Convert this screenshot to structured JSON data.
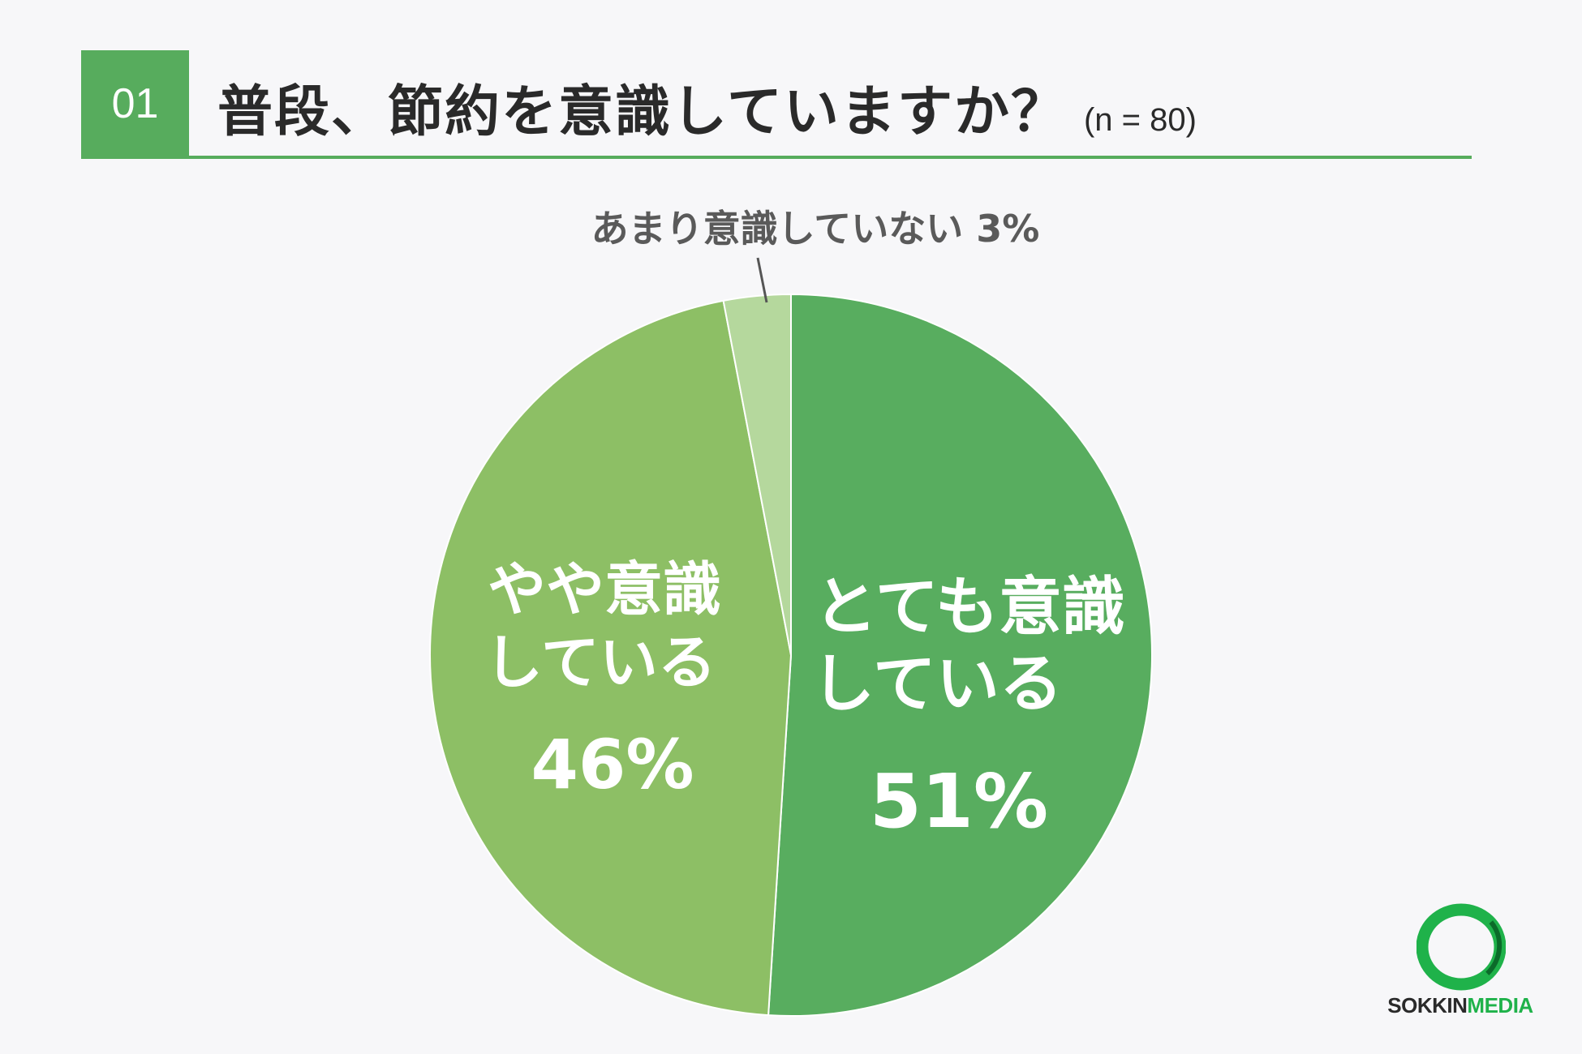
{
  "header": {
    "number": "01",
    "title": "普段、節約を意識していますか？",
    "sample": "(n = 80)"
  },
  "chart_data": {
    "type": "pie",
    "slices": [
      {
        "label_lines": [
          "とても意識",
          "している"
        ],
        "value": 51,
        "value_label": "51%",
        "color": "#58ad5f"
      },
      {
        "label_lines": [
          "やや意識",
          "している"
        ],
        "value": 46,
        "value_label": "46%",
        "color": "#8dbf65"
      },
      {
        "label": "あまり意識していない 3%",
        "value": 3,
        "color": "#b5d89d"
      }
    ]
  },
  "logo": {
    "part1": "SOKKIN",
    "part2": "MEDIA",
    "ring_color": "#1fb24a"
  }
}
